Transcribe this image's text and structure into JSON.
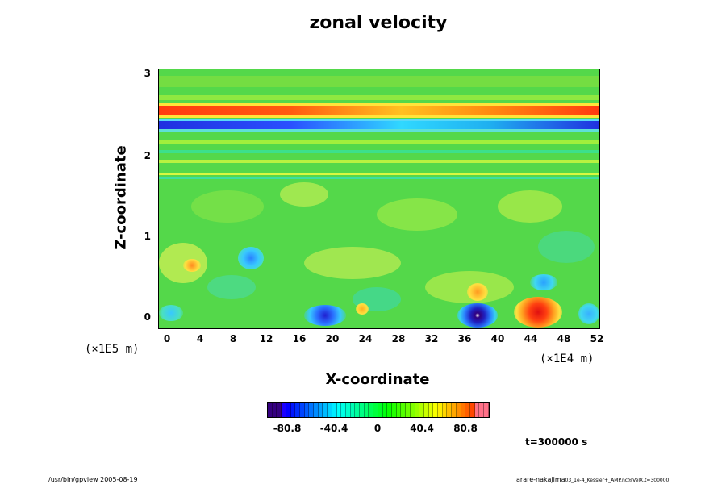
{
  "chart_data": {
    "type": "heatmap",
    "title": "zonal velocity",
    "xlabel": "X-coordinate",
    "ylabel": "Z-coordinate",
    "x_unit": "(×1E4 m)",
    "z_unit": "(×1E5 m)",
    "x_ticks": [
      "0",
      "4",
      "8",
      "12",
      "16",
      "20",
      "24",
      "28",
      "32",
      "36",
      "40",
      "44",
      "48",
      "52"
    ],
    "z_ticks": [
      "0",
      "1",
      "2",
      "3"
    ],
    "xlim": [
      -1,
      52.5
    ],
    "zlim": [
      -0.12,
      3.07
    ],
    "colorbar": {
      "ticks": [
        "-80.8",
        "-40.4",
        "0",
        "40.4",
        "80.8"
      ],
      "tick_values": [
        -80.8,
        -40.4,
        0,
        40.4,
        80.8
      ],
      "range": [
        -110,
        110
      ],
      "colormap": "rainbow"
    },
    "features": [
      {
        "kind": "jet",
        "sign": "positive",
        "z": 2.52,
        "x_range": [
          -1,
          52.5
        ]
      },
      {
        "kind": "jet",
        "sign": "negative",
        "z": 2.38,
        "x_range": [
          -1,
          52.5
        ]
      },
      {
        "kind": "vortex",
        "sign": "negative",
        "x": 37.5,
        "z": 0.02
      },
      {
        "kind": "vortex",
        "sign": "positive",
        "x": 45.5,
        "z": 0.03
      },
      {
        "kind": "vortex",
        "sign": "negative",
        "x": 18.5,
        "z": 0.0
      },
      {
        "kind": "vortex",
        "sign": "negative",
        "x": 10.0,
        "z": 0.72
      },
      {
        "kind": "vortex",
        "sign": "positive",
        "x": 37.5,
        "z": 0.3
      },
      {
        "kind": "vortex",
        "sign": "negative",
        "x": 47.0,
        "z": 0.42
      }
    ],
    "time_label": "t=300000 s"
  },
  "footer": {
    "left": "/usr/bin/gpview 2005-08-19",
    "right": "arare-nakajima",
    "right_small": "03_1e-4_Kessler+_AMP.nc@VelX,t=300000"
  }
}
